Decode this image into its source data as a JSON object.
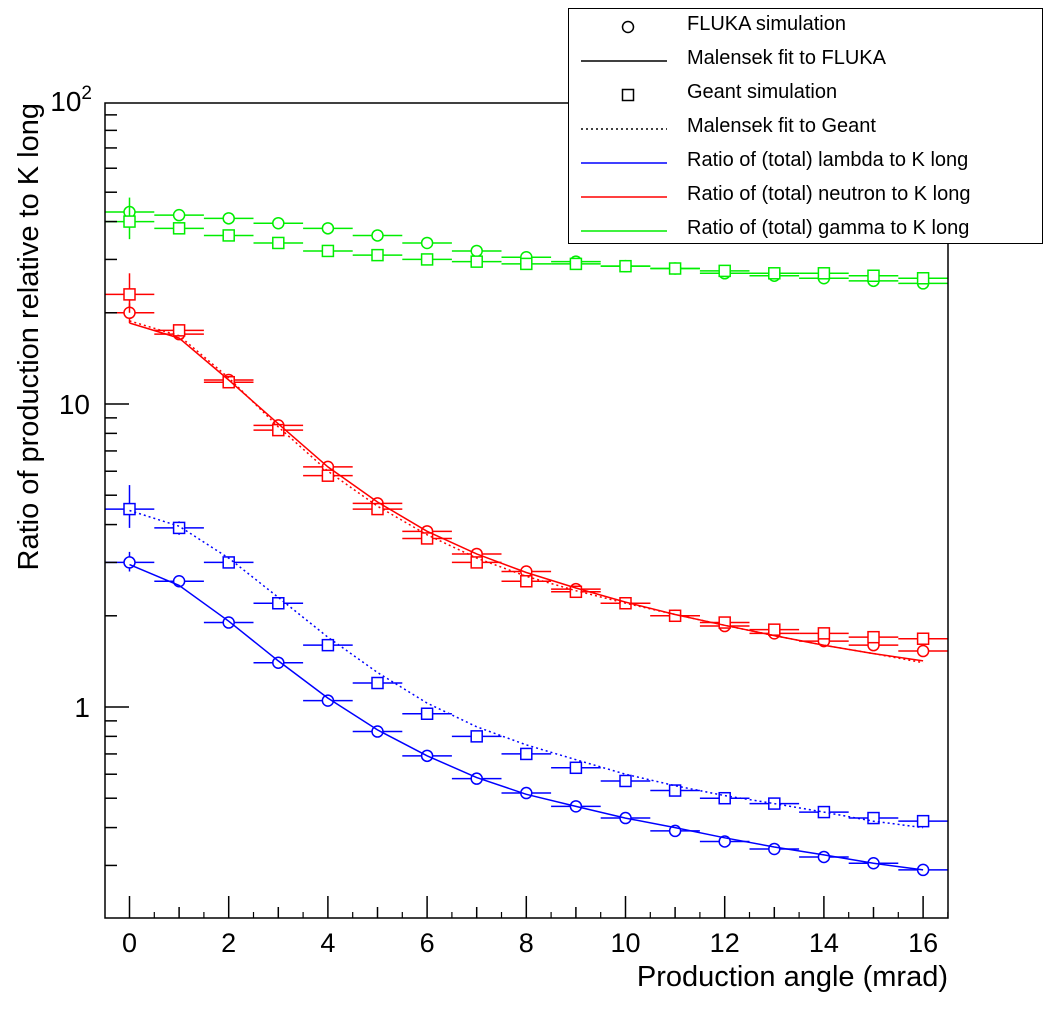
{
  "chart_data": {
    "type": "scatter",
    "xlabel": "Production angle (mrad)",
    "ylabel": "Ratio of production relative to K long",
    "xlim": [
      -0.5,
      16.5
    ],
    "ylim": [
      0.2,
      100
    ],
    "yscale": "log",
    "grid": false,
    "legend_placement": "top-right",
    "x_ticks": [
      0,
      2,
      4,
      6,
      8,
      10,
      12,
      14,
      16
    ],
    "y_tick_labels": [
      {
        "value": 1,
        "base": "1",
        "exp": ""
      },
      {
        "value": 10,
        "base": "10",
        "exp": ""
      },
      {
        "value": 100,
        "base": "10",
        "exp": "2"
      }
    ],
    "legend": [
      {
        "label": "FLUKA simulation",
        "kind": "marker-circle"
      },
      {
        "label": "Malensek fit to FLUKA",
        "kind": "line-solid"
      },
      {
        "label": "Geant simulation",
        "kind": "marker-square"
      },
      {
        "label": "Malensek fit to Geant",
        "kind": "line-dotted"
      },
      {
        "label": "Ratio of (total) lambda to K long",
        "kind": "color",
        "color": "#0000ff"
      },
      {
        "label": "Ratio of (total) neutron to K long",
        "kind": "color",
        "color": "#ff0000"
      },
      {
        "label": "Ratio of (total) gamma to K long",
        "kind": "color",
        "color": "#00ee00"
      }
    ],
    "x": [
      0,
      1,
      2,
      3,
      4,
      5,
      6,
      7,
      8,
      9,
      10,
      11,
      12,
      13,
      14,
      15,
      16
    ],
    "series": [
      {
        "name": "lambda FLUKA",
        "color": "#0000ff",
        "marker": "circle",
        "values": [
          3.0,
          2.6,
          1.9,
          1.4,
          1.05,
          0.83,
          0.69,
          0.58,
          0.52,
          0.47,
          0.43,
          0.39,
          0.36,
          0.34,
          0.32,
          0.305,
          0.29
        ],
        "yerr": [
          [
            0.2,
            0.25
          ],
          [
            0.05,
            0.05
          ],
          [
            0.04,
            0.04
          ],
          [
            0.03,
            0.03
          ],
          [
            0.02,
            0.02
          ],
          [
            0.02,
            0.02
          ],
          [
            0.02,
            0.02
          ],
          [
            0.01,
            0.01
          ],
          [
            0.01,
            0.01
          ],
          [
            0.01,
            0.01
          ],
          [
            0.01,
            0.01
          ],
          [
            0.01,
            0.01
          ],
          [
            0.01,
            0.01
          ],
          [
            0.01,
            0.01
          ],
          [
            0.01,
            0.01
          ],
          [
            0.01,
            0.01
          ],
          [
            0.01,
            0.01
          ]
        ]
      },
      {
        "name": "lambda Geant",
        "color": "#0000ff",
        "marker": "square",
        "values": [
          4.5,
          3.9,
          3.0,
          2.2,
          1.6,
          1.2,
          0.95,
          0.8,
          0.7,
          0.63,
          0.57,
          0.53,
          0.5,
          0.48,
          0.45,
          0.43,
          0.42
        ],
        "yerr": [
          [
            0.6,
            0.9
          ],
          [
            0.2,
            0.2
          ],
          [
            0.1,
            0.1
          ],
          [
            0.05,
            0.05
          ],
          [
            0.04,
            0.04
          ],
          [
            0.03,
            0.03
          ],
          [
            0.02,
            0.02
          ],
          [
            0.02,
            0.02
          ],
          [
            0.01,
            0.01
          ],
          [
            0.01,
            0.01
          ],
          [
            0.01,
            0.01
          ],
          [
            0.01,
            0.01
          ],
          [
            0.01,
            0.01
          ],
          [
            0.01,
            0.01
          ],
          [
            0.01,
            0.01
          ],
          [
            0.01,
            0.01
          ],
          [
            0.01,
            0.01
          ]
        ]
      },
      {
        "name": "lambda FLUKA fit",
        "color": "#0000ff",
        "line": "solid",
        "curve": [
          [
            0,
            2.95
          ],
          [
            1,
            2.52
          ],
          [
            2,
            1.92
          ],
          [
            3,
            1.42
          ],
          [
            4,
            1.07
          ],
          [
            5,
            0.84
          ],
          [
            6,
            0.69
          ],
          [
            7,
            0.585
          ],
          [
            8,
            0.515
          ],
          [
            9,
            0.47
          ],
          [
            10,
            0.43
          ],
          [
            11,
            0.4
          ],
          [
            12,
            0.37
          ],
          [
            13,
            0.345
          ],
          [
            14,
            0.325
          ],
          [
            15,
            0.305
          ],
          [
            16,
            0.29
          ]
        ]
      },
      {
        "name": "lambda Geant fit",
        "color": "#0000ff",
        "line": "dotted",
        "curve": [
          [
            0,
            4.45
          ],
          [
            1,
            3.95
          ],
          [
            2,
            3.1
          ],
          [
            3,
            2.3
          ],
          [
            4,
            1.7
          ],
          [
            5,
            1.3
          ],
          [
            6,
            1.03
          ],
          [
            7,
            0.86
          ],
          [
            8,
            0.75
          ],
          [
            9,
            0.67
          ],
          [
            10,
            0.6
          ],
          [
            11,
            0.55
          ],
          [
            12,
            0.51
          ],
          [
            13,
            0.48
          ],
          [
            14,
            0.45
          ],
          [
            15,
            0.42
          ],
          [
            16,
            0.4
          ]
        ]
      },
      {
        "name": "neutron FLUKA",
        "color": "#ff0000",
        "marker": "circle",
        "values": [
          20,
          17,
          12,
          8.5,
          6.2,
          4.7,
          3.8,
          3.2,
          2.8,
          2.45,
          2.2,
          2.0,
          1.85,
          1.75,
          1.65,
          1.6,
          1.53
        ],
        "yerr": [
          [
            1.5,
            1.5
          ],
          [
            0.5,
            0.5
          ],
          [
            0.3,
            0.3
          ],
          [
            0.2,
            0.2
          ],
          [
            0.1,
            0.1
          ],
          [
            0.1,
            0.1
          ],
          [
            0.05,
            0.05
          ],
          [
            0.05,
            0.05
          ],
          [
            0.05,
            0.05
          ],
          [
            0.03,
            0.03
          ],
          [
            0.03,
            0.03
          ],
          [
            0.03,
            0.03
          ],
          [
            0.03,
            0.03
          ],
          [
            0.03,
            0.03
          ],
          [
            0.03,
            0.03
          ],
          [
            0.03,
            0.03
          ],
          [
            0.03,
            0.03
          ]
        ]
      },
      {
        "name": "neutron Geant",
        "color": "#ff0000",
        "marker": "square",
        "values": [
          23,
          17.5,
          11.8,
          8.2,
          5.8,
          4.5,
          3.6,
          3.0,
          2.6,
          2.4,
          2.2,
          2.0,
          1.9,
          1.8,
          1.75,
          1.7,
          1.68
        ],
        "yerr": [
          [
            3,
            4
          ],
          [
            0.8,
            0.8
          ],
          [
            0.4,
            0.4
          ],
          [
            0.3,
            0.3
          ],
          [
            0.2,
            0.2
          ],
          [
            0.1,
            0.1
          ],
          [
            0.1,
            0.1
          ],
          [
            0.05,
            0.05
          ],
          [
            0.05,
            0.05
          ],
          [
            0.03,
            0.03
          ],
          [
            0.03,
            0.03
          ],
          [
            0.03,
            0.03
          ],
          [
            0.03,
            0.03
          ],
          [
            0.03,
            0.03
          ],
          [
            0.03,
            0.03
          ],
          [
            0.03,
            0.03
          ],
          [
            0.03,
            0.03
          ]
        ]
      },
      {
        "name": "neutron FLUKA fit",
        "color": "#ff0000",
        "line": "solid",
        "curve": [
          [
            0,
            18.5
          ],
          [
            1,
            16.5
          ],
          [
            2,
            12.0
          ],
          [
            3,
            8.6
          ],
          [
            4,
            6.2
          ],
          [
            5,
            4.75
          ],
          [
            6,
            3.8
          ],
          [
            7,
            3.2
          ],
          [
            8,
            2.78
          ],
          [
            9,
            2.47
          ],
          [
            10,
            2.22
          ],
          [
            11,
            2.02
          ],
          [
            12,
            1.86
          ],
          [
            13,
            1.72
          ],
          [
            14,
            1.6
          ],
          [
            15,
            1.5
          ],
          [
            16,
            1.42
          ]
        ]
      },
      {
        "name": "neutron Geant fit",
        "color": "#ff0000",
        "line": "dotted",
        "curve": [
          [
            0,
            18.8
          ],
          [
            1,
            16.8
          ],
          [
            2,
            12.2
          ],
          [
            3,
            8.4
          ],
          [
            4,
            6.0
          ],
          [
            5,
            4.6
          ],
          [
            6,
            3.7
          ],
          [
            7,
            3.1
          ],
          [
            8,
            2.7
          ],
          [
            9,
            2.42
          ],
          [
            10,
            2.2
          ],
          [
            11,
            2.02
          ],
          [
            12,
            1.86
          ],
          [
            13,
            1.72
          ],
          [
            14,
            1.6
          ],
          [
            15,
            1.5
          ],
          [
            16,
            1.4
          ]
        ]
      },
      {
        "name": "gamma FLUKA",
        "color": "#00ee00",
        "marker": "circle",
        "values": [
          43,
          42,
          41,
          39.5,
          38,
          36,
          34,
          32,
          30.5,
          29.5,
          28.5,
          28,
          27,
          26.5,
          26,
          25.5,
          25
        ],
        "yerr": [
          [
            3,
            5
          ],
          [
            1,
            1
          ],
          [
            0.8,
            0.8
          ],
          [
            0.6,
            0.6
          ],
          [
            0.5,
            0.5
          ],
          [
            0.4,
            0.4
          ],
          [
            0.3,
            0.3
          ],
          [
            0.3,
            0.3
          ],
          [
            0.3,
            0.3
          ],
          [
            0.3,
            0.3
          ],
          [
            0.3,
            0.3
          ],
          [
            0.3,
            0.3
          ],
          [
            0.3,
            0.3
          ],
          [
            0.3,
            0.3
          ],
          [
            0.3,
            0.3
          ],
          [
            0.3,
            0.3
          ],
          [
            0.3,
            0.3
          ]
        ]
      },
      {
        "name": "gamma Geant",
        "color": "#00ee00",
        "marker": "square",
        "values": [
          40,
          38,
          36,
          34,
          32,
          31,
          30,
          29.5,
          29,
          29,
          28.5,
          28,
          27.5,
          27,
          27,
          26.5,
          26
        ],
        "yerr": [
          [
            5,
            5
          ],
          [
            1.5,
            1.5
          ],
          [
            0.8,
            0.8
          ],
          [
            0.6,
            0.6
          ],
          [
            0.5,
            0.5
          ],
          [
            0.4,
            0.4
          ],
          [
            0.3,
            0.3
          ],
          [
            0.3,
            0.3
          ],
          [
            0.3,
            0.3
          ],
          [
            0.3,
            0.3
          ],
          [
            0.3,
            0.3
          ],
          [
            0.3,
            0.3
          ],
          [
            0.3,
            0.3
          ],
          [
            0.3,
            0.3
          ],
          [
            0.3,
            0.3
          ],
          [
            0.3,
            0.3
          ],
          [
            0.3,
            0.3
          ]
        ]
      }
    ]
  }
}
